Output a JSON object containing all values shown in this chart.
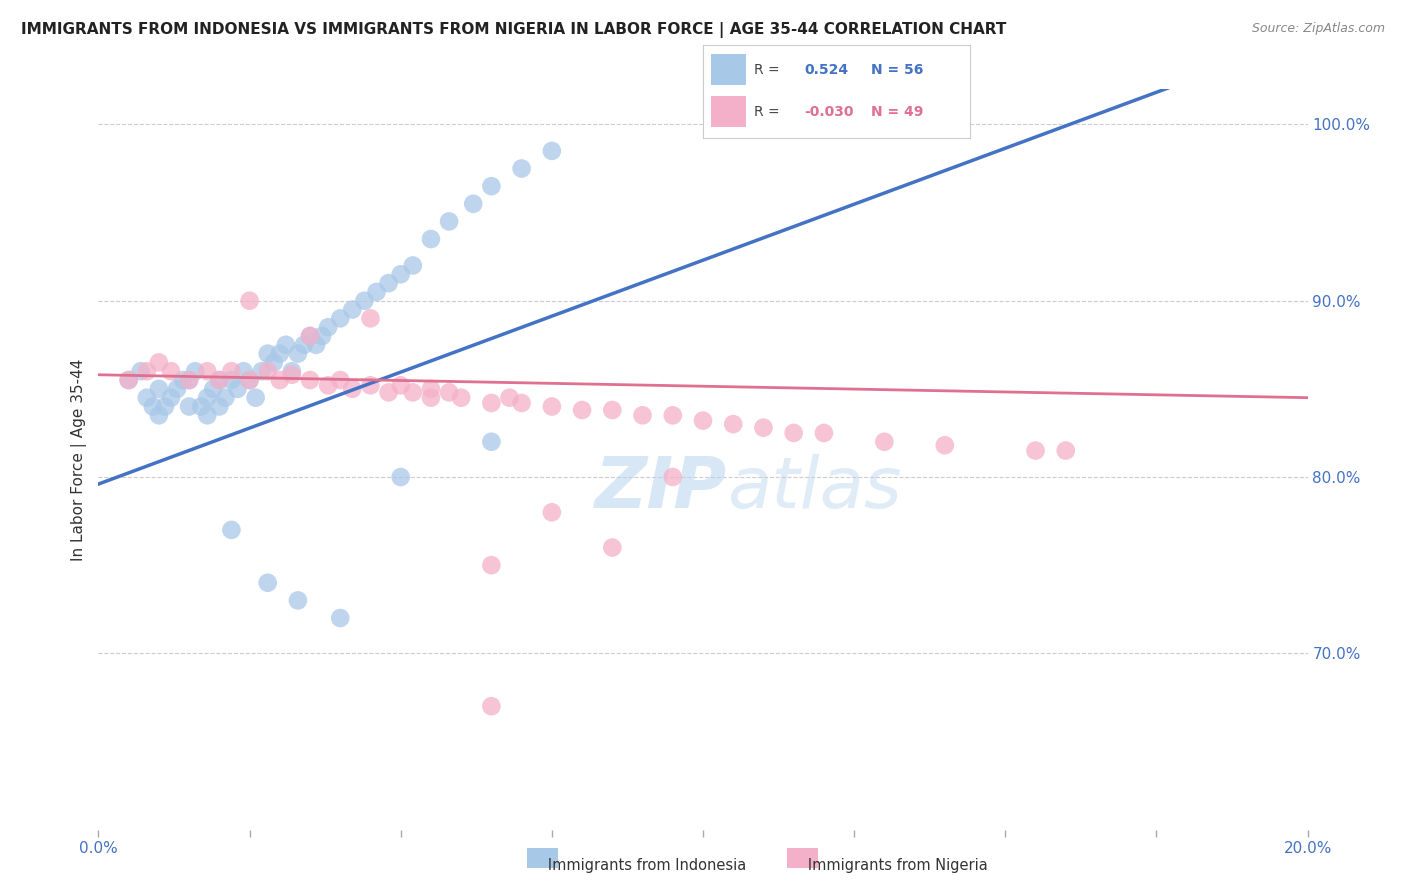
{
  "title": "IMMIGRANTS FROM INDONESIA VS IMMIGRANTS FROM NIGERIA IN LABOR FORCE | AGE 35-44 CORRELATION CHART",
  "source": "Source: ZipAtlas.com",
  "ylabel": "In Labor Force | Age 35-44",
  "xlim": [
    0.0,
    0.2
  ],
  "ylim": [
    0.6,
    1.02
  ],
  "ytick_labels_right": [
    "100.0%",
    "90.0%",
    "80.0%",
    "70.0%"
  ],
  "ytick_positions_right": [
    1.0,
    0.9,
    0.8,
    0.7
  ],
  "r_indonesia": 0.524,
  "n_indonesia": 56,
  "r_nigeria": -0.03,
  "n_nigeria": 49,
  "color_indonesia": "#a8c8e8",
  "color_nigeria": "#f4b0c8",
  "line_color_indonesia": "#4472c4",
  "line_color_nigeria": "#e07090",
  "watermark_zip": "ZIP",
  "watermark_atlas": "atlas",
  "background_color": "#ffffff",
  "grid_color": "#cccccc",
  "title_color": "#222222",
  "source_color": "#888888",
  "axis_label_color": "#333333",
  "tick_color": "#4472c4",
  "legend_r_color": "#333333",
  "indonesia_x": [
    0.005,
    0.007,
    0.008,
    0.009,
    0.01,
    0.01,
    0.011,
    0.012,
    0.013,
    0.014,
    0.015,
    0.015,
    0.016,
    0.017,
    0.018,
    0.018,
    0.019,
    0.02,
    0.02,
    0.021,
    0.022,
    0.023,
    0.024,
    0.025,
    0.026,
    0.027,
    0.028,
    0.029,
    0.03,
    0.031,
    0.032,
    0.033,
    0.034,
    0.035,
    0.036,
    0.037,
    0.038,
    0.04,
    0.042,
    0.044,
    0.046,
    0.048,
    0.05,
    0.052,
    0.055,
    0.058,
    0.062,
    0.065,
    0.07,
    0.075,
    0.022,
    0.028,
    0.033,
    0.04,
    0.05,
    0.065
  ],
  "indonesia_y": [
    0.855,
    0.86,
    0.845,
    0.84,
    0.835,
    0.85,
    0.84,
    0.845,
    0.85,
    0.855,
    0.84,
    0.855,
    0.86,
    0.84,
    0.845,
    0.835,
    0.85,
    0.84,
    0.855,
    0.845,
    0.855,
    0.85,
    0.86,
    0.855,
    0.845,
    0.86,
    0.87,
    0.865,
    0.87,
    0.875,
    0.86,
    0.87,
    0.875,
    0.88,
    0.875,
    0.88,
    0.885,
    0.89,
    0.895,
    0.9,
    0.905,
    0.91,
    0.915,
    0.92,
    0.935,
    0.945,
    0.955,
    0.965,
    0.975,
    0.985,
    0.77,
    0.74,
    0.73,
    0.72,
    0.8,
    0.82
  ],
  "nigeria_x": [
    0.005,
    0.008,
    0.01,
    0.012,
    0.015,
    0.018,
    0.02,
    0.022,
    0.025,
    0.028,
    0.03,
    0.032,
    0.035,
    0.038,
    0.04,
    0.042,
    0.045,
    0.048,
    0.05,
    0.052,
    0.055,
    0.058,
    0.06,
    0.065,
    0.068,
    0.07,
    0.075,
    0.08,
    0.085,
    0.09,
    0.095,
    0.1,
    0.105,
    0.11,
    0.115,
    0.12,
    0.13,
    0.14,
    0.155,
    0.16,
    0.025,
    0.035,
    0.045,
    0.055,
    0.065,
    0.075,
    0.085,
    0.095,
    0.065
  ],
  "nigeria_y": [
    0.855,
    0.86,
    0.865,
    0.86,
    0.855,
    0.86,
    0.855,
    0.86,
    0.855,
    0.86,
    0.855,
    0.858,
    0.855,
    0.852,
    0.855,
    0.85,
    0.852,
    0.848,
    0.852,
    0.848,
    0.845,
    0.848,
    0.845,
    0.842,
    0.845,
    0.842,
    0.84,
    0.838,
    0.838,
    0.835,
    0.835,
    0.832,
    0.83,
    0.828,
    0.825,
    0.825,
    0.82,
    0.818,
    0.815,
    0.815,
    0.9,
    0.88,
    0.89,
    0.85,
    0.75,
    0.78,
    0.76,
    0.8,
    0.67
  ],
  "blue_line_x": [
    0.0,
    0.2
  ],
  "blue_line_y": [
    0.796,
    1.05
  ],
  "pink_line_x": [
    0.0,
    0.2
  ],
  "pink_line_y": [
    0.858,
    0.845
  ]
}
